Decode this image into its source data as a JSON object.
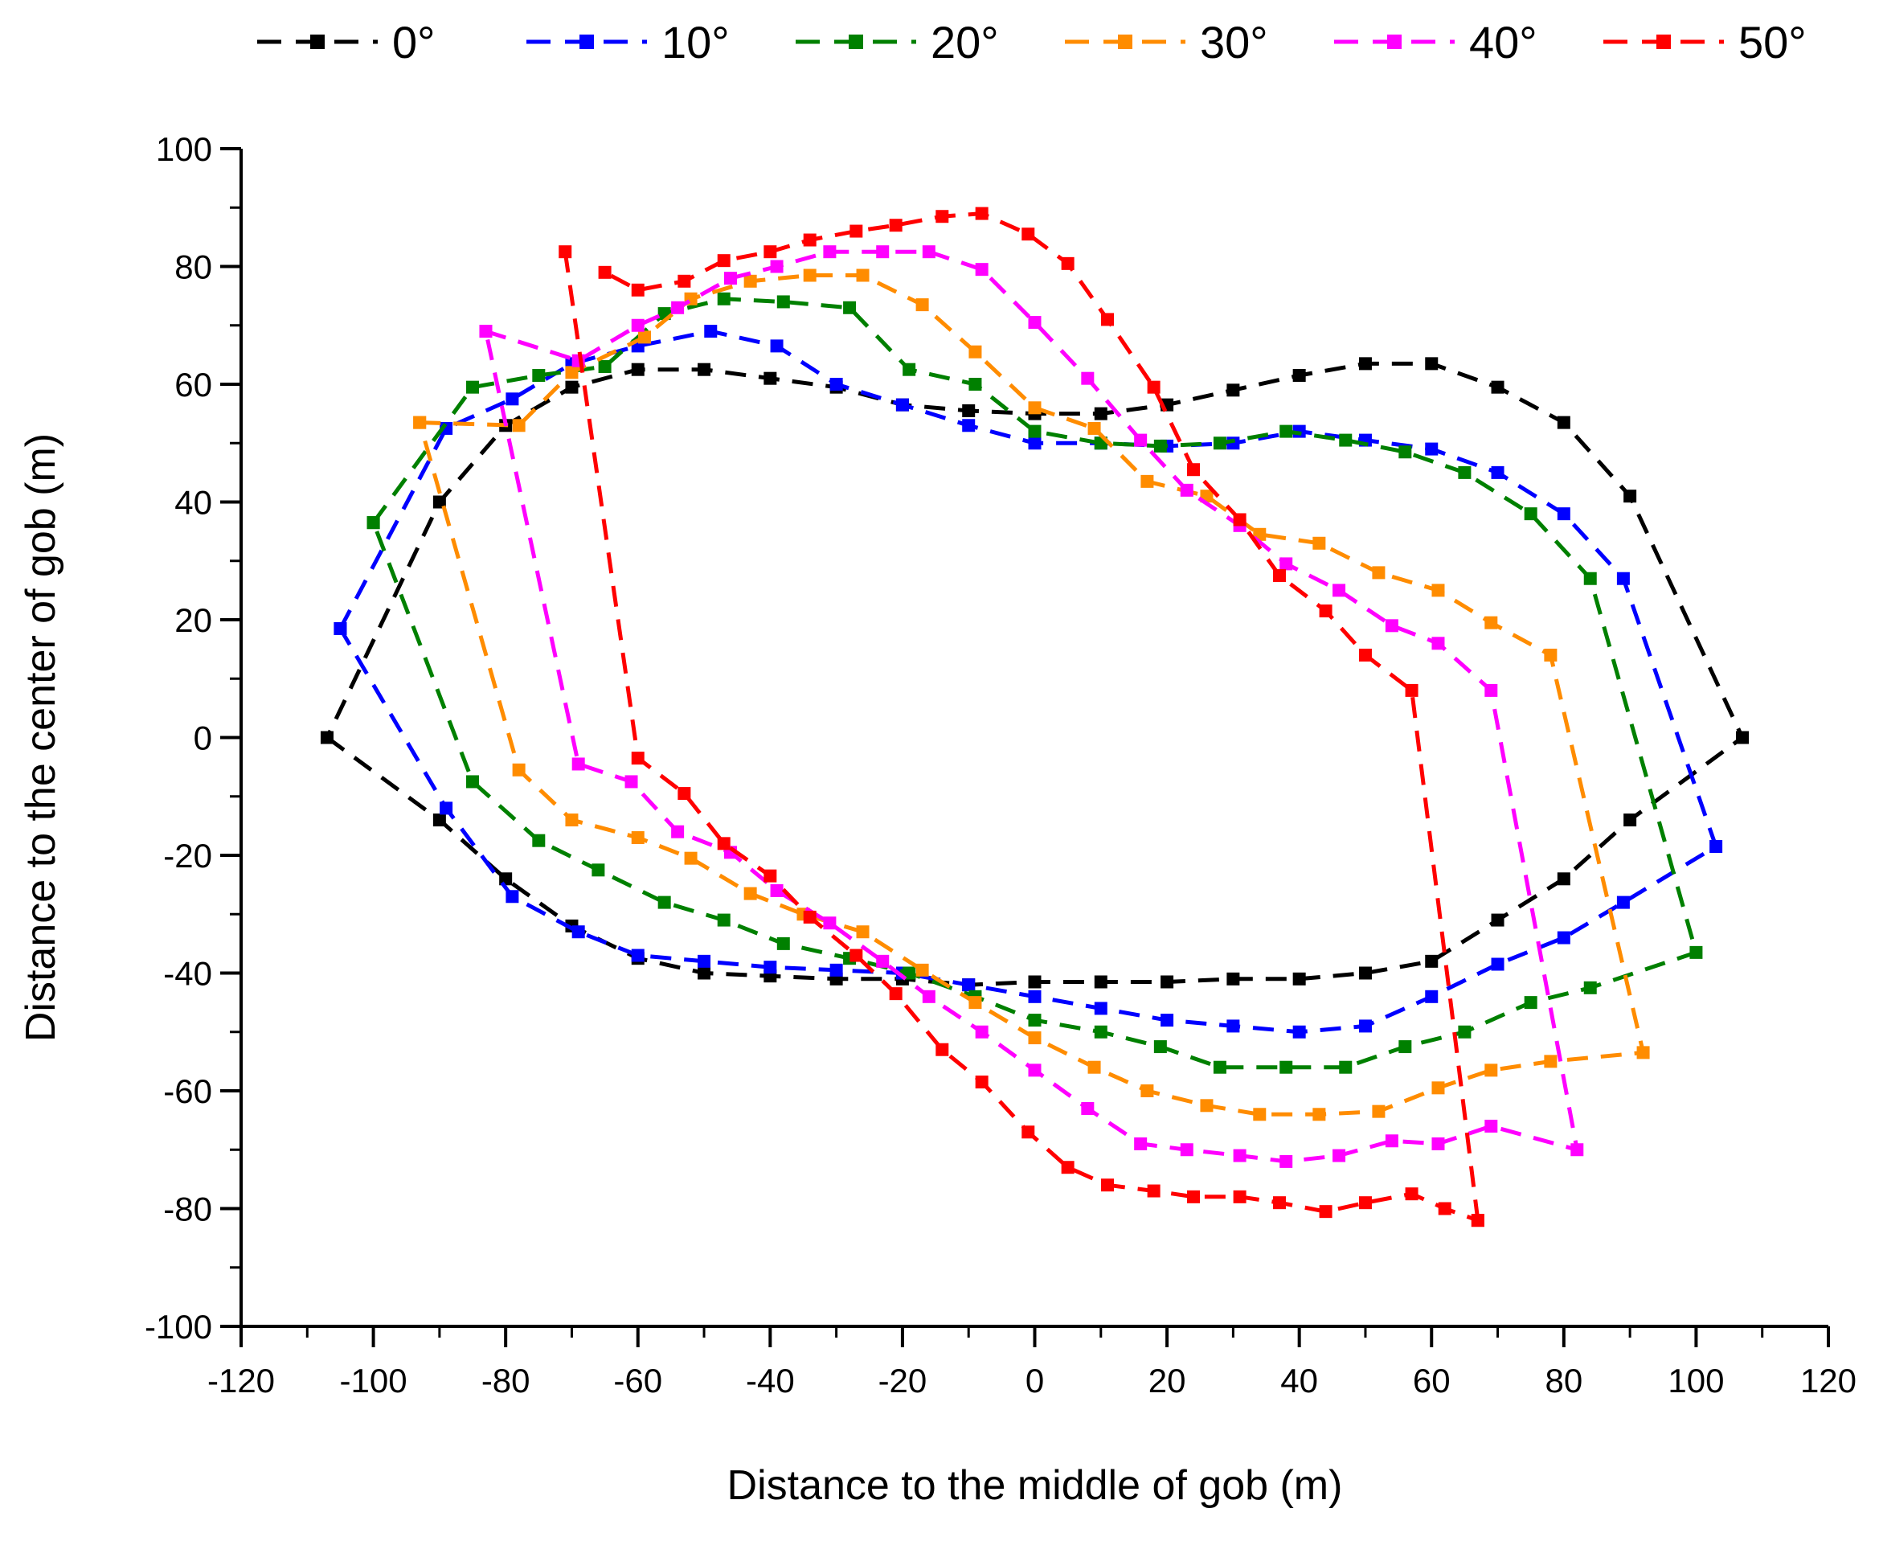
{
  "chart_data": {
    "type": "line",
    "title": "",
    "xlabel": "Distance to the middle of gob (m)",
    "ylabel": "Distance to the center of gob (m)",
    "xlim": [
      -120,
      120
    ],
    "ylim": [
      -100,
      100
    ],
    "xticks": [
      -120,
      -100,
      -80,
      -60,
      -40,
      -20,
      0,
      20,
      40,
      60,
      80,
      100,
      120
    ],
    "yticks": [
      -100,
      -80,
      -60,
      -40,
      -20,
      0,
      20,
      40,
      60,
      80,
      100
    ],
    "grid": false,
    "legend_position": "top",
    "series": [
      {
        "name": "0°",
        "color": "#000000",
        "segments": [
          [
            [
              -107,
              0
            ],
            [
              -90,
              -14
            ],
            [
              -80,
              -24
            ],
            [
              -70,
              -32
            ],
            [
              -60,
              -37.5
            ],
            [
              -50,
              -40
            ],
            [
              -40,
              -40.5
            ],
            [
              -30,
              -41
            ],
            [
              -20,
              -41
            ],
            [
              -10,
              -42
            ],
            [
              0,
              -41.5
            ],
            [
              10,
              -41.5
            ],
            [
              20,
              -41.5
            ],
            [
              30,
              -41
            ],
            [
              40,
              -41
            ],
            [
              50,
              -40
            ],
            [
              60,
              -38
            ],
            [
              70,
              -31
            ],
            [
              80,
              -24
            ],
            [
              90,
              -14
            ],
            [
              107,
              0
            ],
            [
              90,
              41
            ],
            [
              80,
              53.5
            ],
            [
              70,
              59.5
            ],
            [
              60,
              63.5
            ],
            [
              50,
              63.5
            ],
            [
              40,
              61.5
            ],
            [
              30,
              59
            ],
            [
              20,
              56.5
            ],
            [
              10,
              55
            ],
            [
              0,
              55
            ],
            [
              -10,
              55.5
            ],
            [
              -20,
              56.5
            ],
            [
              -30,
              59.5
            ],
            [
              -40,
              61
            ],
            [
              -50,
              62.5
            ],
            [
              -60,
              62.5
            ],
            [
              -70,
              59.5
            ],
            [
              -80,
              53
            ],
            [
              -90,
              40
            ],
            [
              -107,
              0
            ]
          ]
        ]
      },
      {
        "name": "10°",
        "color": "#0000ff",
        "segments": [
          [
            [
              -105,
              18.5
            ],
            [
              -89,
              52.5
            ],
            [
              -79,
              57.5
            ],
            [
              -70,
              63.5
            ],
            [
              -60,
              66.5
            ],
            [
              -49,
              69
            ],
            [
              -39,
              66.5
            ],
            [
              -30,
              60
            ],
            [
              -20,
              56.5
            ],
            [
              -10,
              53
            ],
            [
              0,
              50
            ],
            [
              10,
              50
            ],
            [
              20,
              49.5
            ],
            [
              30,
              50
            ],
            [
              40,
              52
            ],
            [
              50,
              50.5
            ],
            [
              60,
              49
            ],
            [
              70,
              45
            ],
            [
              80,
              38
            ],
            [
              89,
              27
            ],
            [
              103,
              -18.5
            ],
            [
              89,
              -28
            ],
            [
              80,
              -34
            ],
            [
              70,
              -38.5
            ],
            [
              60,
              -44
            ],
            [
              50,
              -49
            ],
            [
              40,
              -50
            ],
            [
              30,
              -49
            ],
            [
              20,
              -48
            ],
            [
              10,
              -46
            ],
            [
              0,
              -44
            ],
            [
              -10,
              -42
            ],
            [
              -20,
              -40
            ],
            [
              -30,
              -39.5
            ],
            [
              -40,
              -39
            ],
            [
              -50,
              -38
            ],
            [
              -60,
              -37
            ],
            [
              -69,
              -33
            ],
            [
              -79,
              -27
            ],
            [
              -89,
              -12
            ],
            [
              -105,
              18.5
            ]
          ]
        ]
      },
      {
        "name": "20°",
        "color": "#008000",
        "segments": [
          [
            [
              -100,
              36.5
            ],
            [
              -85,
              59.5
            ],
            [
              -75,
              61.5
            ],
            [
              -65,
              63
            ],
            [
              -56,
              72
            ],
            [
              -47,
              74.5
            ],
            [
              -38,
              74
            ],
            [
              -28,
              73
            ],
            [
              -19,
              62.5
            ],
            [
              -9,
              60
            ],
            [
              0,
              52
            ],
            [
              10,
              50
            ],
            [
              19,
              49.5
            ],
            [
              28,
              50
            ],
            [
              38,
              52
            ],
            [
              47,
              50.5
            ],
            [
              56,
              48.5
            ],
            [
              65,
              45
            ],
            [
              75,
              38
            ],
            [
              84,
              27
            ],
            [
              100,
              -36.5
            ],
            [
              84,
              -42.5
            ],
            [
              75,
              -45
            ],
            [
              65,
              -50
            ],
            [
              56,
              -52.5
            ],
            [
              47,
              -56
            ],
            [
              38,
              -56
            ],
            [
              28,
              -56
            ],
            [
              19,
              -52.5
            ],
            [
              10,
              -50
            ],
            [
              0,
              -48
            ],
            [
              -9,
              -44
            ],
            [
              -19,
              -40
            ],
            [
              -28,
              -37.5
            ],
            [
              -38,
              -35
            ],
            [
              -47,
              -31
            ],
            [
              -56,
              -28
            ],
            [
              -66,
              -22.5
            ],
            [
              -75,
              -17.5
            ],
            [
              -85,
              -7.5
            ],
            [
              -100,
              36.5
            ]
          ]
        ]
      },
      {
        "name": "30°",
        "color": "#ff8c00",
        "segments": [
          [
            [
              -93,
              53.5
            ],
            [
              -78,
              53
            ],
            [
              -70,
              62
            ],
            [
              -59,
              68
            ],
            [
              -52,
              74.5
            ],
            [
              -43,
              77.5
            ],
            [
              -34,
              78.5
            ],
            [
              -26,
              78.5
            ],
            [
              -17,
              73.5
            ],
            [
              -9,
              65.5
            ],
            [
              0,
              56
            ],
            [
              9,
              52.5
            ],
            [
              17,
              43.5
            ],
            [
              26,
              41
            ],
            [
              34,
              34.5
            ],
            [
              43,
              33
            ],
            [
              52,
              28
            ],
            [
              61,
              25
            ],
            [
              69,
              19.5
            ],
            [
              78,
              14
            ],
            [
              92,
              -53.5
            ],
            [
              78,
              -55
            ],
            [
              69,
              -56.5
            ],
            [
              61,
              -59.5
            ],
            [
              52,
              -63.5
            ],
            [
              43,
              -64
            ],
            [
              34,
              -64
            ],
            [
              26,
              -62.5
            ],
            [
              17,
              -60
            ],
            [
              9,
              -56
            ],
            [
              0,
              -51
            ],
            [
              -9,
              -45
            ],
            [
              -17,
              -39.5
            ],
            [
              -26,
              -33
            ],
            [
              -35,
              -30
            ],
            [
              -43,
              -26.5
            ],
            [
              -52,
              -20.5
            ],
            [
              -60,
              -17
            ],
            [
              -70,
              -14
            ],
            [
              -78,
              -5.5
            ],
            [
              -93,
              53.5
            ]
          ]
        ]
      },
      {
        "name": "40°",
        "color": "#ff00ff",
        "segments": [
          [
            [
              -83,
              69
            ],
            [
              -69,
              64
            ],
            [
              -60,
              70
            ],
            [
              -54,
              73
            ],
            [
              -46,
              78
            ],
            [
              -39,
              80
            ],
            [
              -31,
              82.5
            ],
            [
              -23,
              82.5
            ],
            [
              -16,
              82.5
            ],
            [
              -8,
              79.5
            ],
            [
              0,
              70.5
            ],
            [
              8,
              61
            ],
            [
              16,
              50.5
            ],
            [
              23,
              42
            ],
            [
              31,
              36
            ],
            [
              38,
              29.5
            ],
            [
              46,
              25
            ],
            [
              54,
              19
            ],
            [
              61,
              16
            ],
            [
              69,
              8
            ],
            [
              82,
              -70
            ],
            [
              69,
              -66
            ],
            [
              61,
              -69
            ],
            [
              54,
              -68.5
            ],
            [
              46,
              -71
            ],
            [
              38,
              -72
            ],
            [
              31,
              -71
            ],
            [
              23,
              -70
            ],
            [
              16,
              -69
            ],
            [
              8,
              -63
            ],
            [
              0,
              -56.5
            ],
            [
              -8,
              -50
            ],
            [
              -16,
              -44
            ],
            [
              -23,
              -38
            ],
            [
              -31,
              -31.5
            ],
            [
              -39,
              -26
            ],
            [
              -46,
              -19.5
            ],
            [
              -54,
              -16
            ],
            [
              -61,
              -7.5
            ],
            [
              -69,
              -4.5
            ],
            [
              -83,
              69
            ]
          ]
        ]
      },
      {
        "name": "50°",
        "color": "#ff0000",
        "segments": [
          [
            [
              -71,
              82.5
            ],
            [
              -60,
              -3.5
            ],
            [
              -53,
              -9.5
            ],
            [
              -47,
              -18
            ],
            [
              -40,
              -23.5
            ],
            [
              -34,
              -30.5
            ],
            [
              -27,
              -37
            ],
            [
              -21,
              -43.5
            ],
            [
              -14,
              -53
            ],
            [
              -8,
              -58.5
            ],
            [
              -1,
              -67
            ],
            [
              5,
              -73
            ],
            [
              11,
              -76
            ],
            [
              18,
              -77
            ],
            [
              24,
              -78
            ],
            [
              31,
              -78
            ],
            [
              37,
              -79
            ],
            [
              44,
              -80.5
            ],
            [
              50,
              -79
            ],
            [
              57,
              -77.5
            ],
            [
              62,
              -80
            ],
            [
              67,
              -82
            ]
          ],
          [
            [
              67,
              -82
            ],
            [
              57,
              8
            ],
            [
              50,
              14
            ],
            [
              44,
              21.5
            ],
            [
              37,
              27.5
            ],
            [
              31,
              37
            ],
            [
              24,
              45.5
            ],
            [
              18,
              59.5
            ],
            [
              11,
              71
            ],
            [
              5,
              80.5
            ],
            [
              -1,
              85.5
            ],
            [
              -8,
              89
            ],
            [
              -14,
              88.5
            ],
            [
              -21,
              87
            ],
            [
              -27,
              86
            ],
            [
              -34,
              84.5
            ],
            [
              -40,
              82.5
            ],
            [
              -47,
              81
            ],
            [
              -53,
              77.5
            ],
            [
              -60,
              76
            ],
            [
              -65,
              79
            ]
          ]
        ]
      }
    ]
  }
}
